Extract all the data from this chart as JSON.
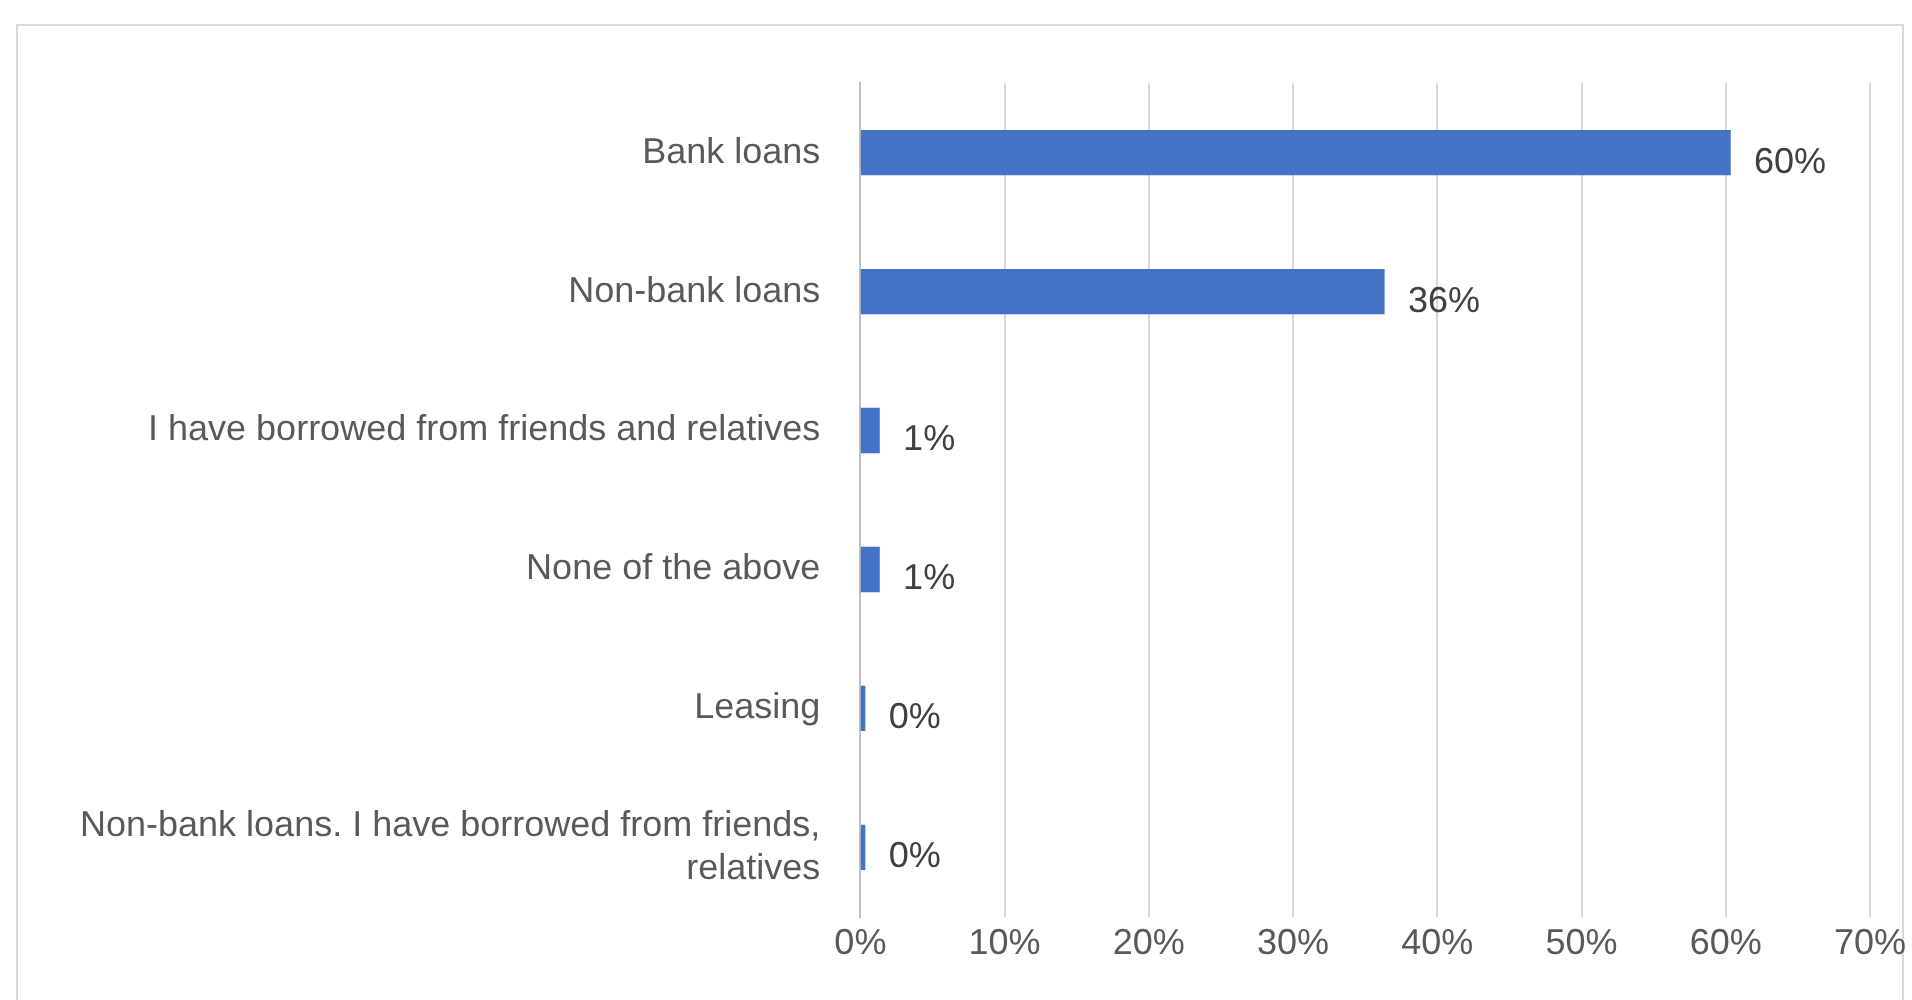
{
  "chart_data": {
    "type": "bar",
    "orientation": "horizontal",
    "categories": [
      "Bank loans",
      "Non-bank loans",
      "I have borrowed from friends and relatives",
      "None of the above",
      "Leasing",
      "Non-bank loans. I have borrowed from friends, relatives"
    ],
    "values": [
      60.3,
      36.3,
      1.3,
      1.3,
      0.3,
      0.3
    ],
    "value_labels": [
      "60%",
      "36%",
      "1%",
      "1%",
      "0%",
      "0%"
    ],
    "color": "#4472c4",
    "xlim": [
      0,
      70
    ],
    "xticks": [
      {
        "value": 0,
        "label": "0%"
      },
      {
        "value": 10,
        "label": "10%"
      },
      {
        "value": 20,
        "label": "20%"
      },
      {
        "value": 30,
        "label": "30%"
      },
      {
        "value": 40,
        "label": "40%"
      },
      {
        "value": 50,
        "label": "50%"
      },
      {
        "value": 60,
        "label": "60%"
      },
      {
        "value": 70,
        "label": "70%"
      }
    ],
    "grid": "x"
  }
}
